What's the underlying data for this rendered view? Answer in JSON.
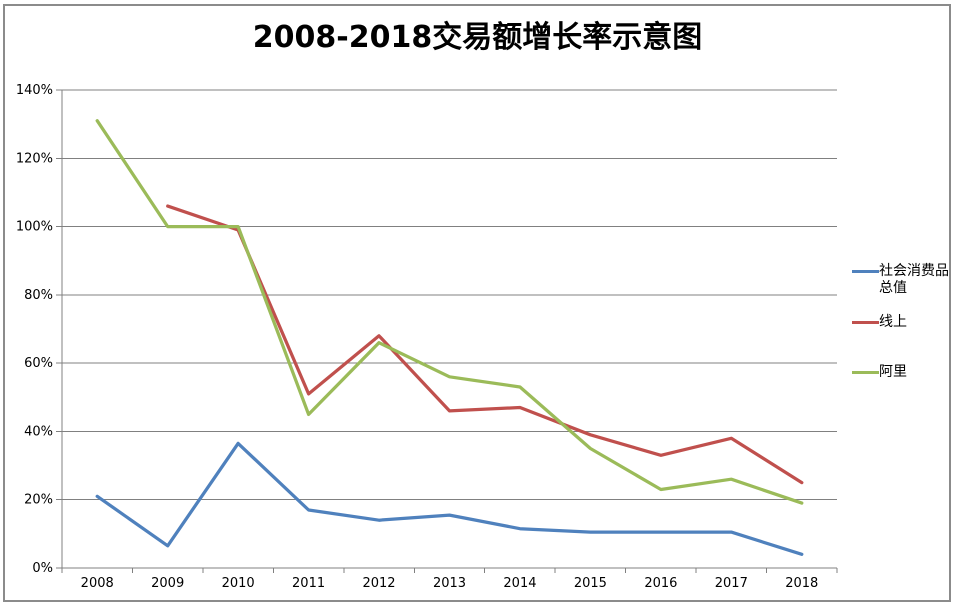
{
  "chart_data": {
    "type": "line",
    "title": "2008-2018交易额增长率示意图",
    "categories": [
      "2008",
      "2009",
      "2010",
      "2011",
      "2012",
      "2013",
      "2014",
      "2015",
      "2016",
      "2017",
      "2018"
    ],
    "series": [
      {
        "id": "social-consumer-goods-total",
        "name": "社会消费品总值",
        "color": "#4F81BD",
        "values": [
          21,
          6.5,
          36.5,
          17,
          14,
          15.5,
          11.5,
          10.5,
          10.5,
          10.5,
          4
        ]
      },
      {
        "id": "online",
        "name": "线上",
        "color": "#C0504D",
        "values": [
          null,
          106,
          99,
          51,
          68,
          46,
          47,
          39,
          33,
          38,
          25
        ]
      },
      {
        "id": "alibaba",
        "name": "阿里",
        "color": "#9BBB59",
        "values": [
          131,
          100,
          100,
          45,
          66,
          56,
          53,
          35,
          23,
          26,
          19
        ]
      }
    ],
    "y_ticks": [
      "0%",
      "20%",
      "40%",
      "60%",
      "80%",
      "100%",
      "120%",
      "140%"
    ],
    "ylim": [
      0,
      140
    ],
    "y_step": 20,
    "unit": "percent",
    "grid": true,
    "legend_position": "right",
    "xlabel": "",
    "ylabel": ""
  },
  "colors": {
    "background": "#FFFFFF",
    "gridline": "#808080",
    "axis": "#808080",
    "border": "#8B8B8B",
    "text": "#000000"
  }
}
